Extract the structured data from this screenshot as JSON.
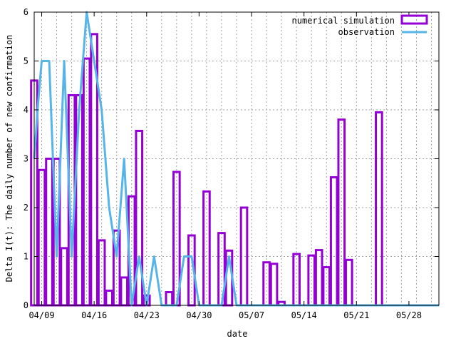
{
  "chart_data": {
    "type": "bar",
    "title": "",
    "xlabel": "date",
    "ylabel": "Delta I(t): The daily number of new confirmation",
    "ylim": [
      0,
      6
    ],
    "yticks": [
      0,
      1,
      2,
      3,
      4,
      5,
      6
    ],
    "grid": true,
    "legend_position": "top-right",
    "x_start_date": "2020-04-08",
    "xlim_days": [
      0,
      54
    ],
    "xticks": [
      {
        "day": 1,
        "label": "04/09"
      },
      {
        "day": 8,
        "label": "04/16"
      },
      {
        "day": 15,
        "label": "04/23"
      },
      {
        "day": 22,
        "label": "04/30"
      },
      {
        "day": 29,
        "label": "05/07"
      },
      {
        "day": 36,
        "label": "05/14"
      },
      {
        "day": 43,
        "label": "05/21"
      },
      {
        "day": 50,
        "label": "05/28"
      }
    ],
    "series": [
      {
        "name": "numerical simulation",
        "kind": "bars",
        "color": "#9400d3",
        "points": [
          {
            "day": 0,
            "value": 4.6
          },
          {
            "day": 1,
            "value": 2.77
          },
          {
            "day": 2,
            "value": 3.0
          },
          {
            "day": 3,
            "value": 3.0
          },
          {
            "day": 4,
            "value": 1.17
          },
          {
            "day": 5,
            "value": 4.3
          },
          {
            "day": 6,
            "value": 4.3
          },
          {
            "day": 7,
            "value": 5.05
          },
          {
            "day": 8,
            "value": 5.55
          },
          {
            "day": 9,
            "value": 1.33
          },
          {
            "day": 10,
            "value": 0.3
          },
          {
            "day": 11,
            "value": 1.53
          },
          {
            "day": 12,
            "value": 0.57
          },
          {
            "day": 13,
            "value": 2.23
          },
          {
            "day": 14,
            "value": 3.57
          },
          {
            "day": 15,
            "value": 0.2
          },
          {
            "day": 18,
            "value": 0.27
          },
          {
            "day": 19,
            "value": 2.73
          },
          {
            "day": 21,
            "value": 1.43
          },
          {
            "day": 23,
            "value": 2.33
          },
          {
            "day": 25,
            "value": 1.48
          },
          {
            "day": 26,
            "value": 1.12
          },
          {
            "day": 28,
            "value": 2.0
          },
          {
            "day": 31,
            "value": 0.88
          },
          {
            "day": 32,
            "value": 0.85
          },
          {
            "day": 33,
            "value": 0.07
          },
          {
            "day": 35,
            "value": 1.05
          },
          {
            "day": 37,
            "value": 1.02
          },
          {
            "day": 38,
            "value": 1.13
          },
          {
            "day": 39,
            "value": 0.78
          },
          {
            "day": 40,
            "value": 2.62
          },
          {
            "day": 41,
            "value": 3.8
          },
          {
            "day": 42,
            "value": 0.93
          },
          {
            "day": 46,
            "value": 3.95
          }
        ]
      },
      {
        "name": "observation",
        "kind": "line",
        "color": "#56b4e9",
        "points": [
          {
            "day": 0,
            "value": 3
          },
          {
            "day": 0.5,
            "value": 4.1
          },
          {
            "day": 1,
            "value": 5
          },
          {
            "day": 2,
            "value": 5
          },
          {
            "day": 3,
            "value": 1
          },
          {
            "day": 4,
            "value": 5
          },
          {
            "day": 5,
            "value": 1
          },
          {
            "day": 6,
            "value": 4
          },
          {
            "day": 7,
            "value": 6
          },
          {
            "day": 8,
            "value": 5
          },
          {
            "day": 9,
            "value": 4
          },
          {
            "day": 10,
            "value": 2
          },
          {
            "day": 11,
            "value": 1
          },
          {
            "day": 12,
            "value": 3
          },
          {
            "day": 13,
            "value": 0
          },
          {
            "day": 14,
            "value": 1
          },
          {
            "day": 15,
            "value": 0
          },
          {
            "day": 16,
            "value": 1
          },
          {
            "day": 17,
            "value": 0
          },
          {
            "day": 18,
            "value": 0
          },
          {
            "day": 19,
            "value": 0
          },
          {
            "day": 20,
            "value": 1
          },
          {
            "day": 21,
            "value": 1
          },
          {
            "day": 22,
            "value": 0
          },
          {
            "day": 23,
            "value": 0
          },
          {
            "day": 24,
            "value": 0
          },
          {
            "day": 25,
            "value": 0
          },
          {
            "day": 26,
            "value": 1
          },
          {
            "day": 27,
            "value": 0
          },
          {
            "day": 54,
            "value": 0
          }
        ]
      }
    ]
  }
}
